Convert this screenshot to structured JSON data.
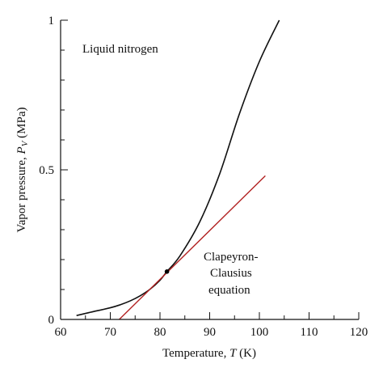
{
  "chart_data": {
    "type": "line",
    "annotations": [
      "Liquid nitrogen",
      "Clapeyron-",
      "Clausius",
      "equation"
    ],
    "xlabel": {
      "prefix": "Temperature, ",
      "symbol": "T",
      "unit": " (K)"
    },
    "ylabel": {
      "prefix": "Vapor pressure, ",
      "symbol": "P",
      "subscript": "V",
      "unit": " (MPa)"
    },
    "xlim": [
      60,
      120
    ],
    "ylim": [
      0,
      1
    ],
    "xticks": [
      {
        "value": 60,
        "label": "60"
      },
      {
        "value": 70,
        "label": "70"
      },
      {
        "value": 80,
        "label": "80"
      },
      {
        "value": 90,
        "label": "90"
      },
      {
        "value": 100,
        "label": "100"
      },
      {
        "value": 110,
        "label": "110"
      },
      {
        "value": 120,
        "label": "120"
      }
    ],
    "yticks": [
      {
        "value": 0,
        "label": "0"
      },
      {
        "value": 0.5,
        "label": "0.5"
      },
      {
        "value": 1,
        "label": "1"
      }
    ],
    "grid": false,
    "colors": {
      "curve": "#111111",
      "tangent": "#b22222",
      "axis": "#111111"
    },
    "series": [
      {
        "role": "vapor-pressure-curve",
        "x": [
          63.2,
          66,
          70,
          72,
          74,
          76,
          78,
          80,
          81.4,
          84,
          88,
          92,
          96,
          100,
          104
        ],
        "y": [
          0.013,
          0.024,
          0.039,
          0.049,
          0.062,
          0.079,
          0.101,
          0.131,
          0.16,
          0.212,
          0.326,
          0.486,
          0.688,
          0.862,
          1.0
        ]
      },
      {
        "role": "clapeyron-clausius-tangent",
        "x": [
          71.8,
          101.2
        ],
        "y": [
          0.0,
          0.48
        ]
      }
    ],
    "point": {
      "x": 81.4,
      "y": 0.16
    }
  }
}
